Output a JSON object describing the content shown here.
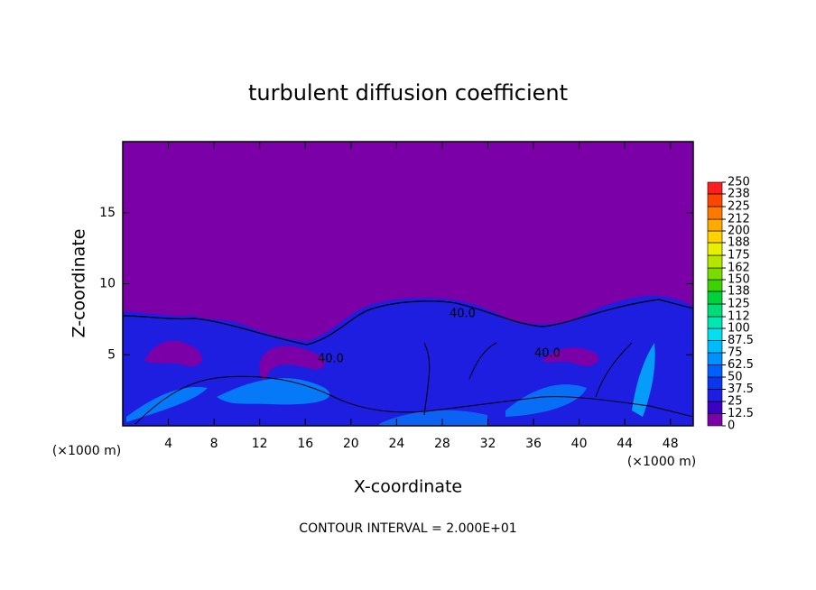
{
  "chart_data": {
    "type": "contour",
    "title": "turbulent diffusion coefficient",
    "xlabel": "X-coordinate",
    "ylabel": "Z-coordinate",
    "x_unit": "(×1000 m)",
    "y_unit": "(×1000 m)",
    "xlim": [
      0,
      50
    ],
    "xticks": [
      4,
      8,
      12,
      16,
      20,
      24,
      28,
      32,
      36,
      40,
      44,
      48
    ],
    "ylim": [
      0,
      20
    ],
    "yticks": [
      5,
      10,
      15
    ],
    "colorbar": {
      "lim": [
        0,
        250
      ],
      "ticks": [
        0,
        12.5,
        25,
        37.5,
        50,
        62.5,
        75,
        87.5,
        100,
        112,
        125,
        138,
        150,
        162,
        175,
        188,
        200,
        212,
        225,
        238,
        250
      ],
      "colors": [
        "#7b00a8",
        "#3c00c4",
        "#1e1ee0",
        "#0a36f0",
        "#0060ff",
        "#0090ff",
        "#00bcff",
        "#00e0ee",
        "#00e6b4",
        "#00dc78",
        "#00d23c",
        "#3cd200",
        "#78dc00",
        "#b4e600",
        "#e6f000",
        "#ffd200",
        "#ffaa00",
        "#ff7800",
        "#ff4600",
        "#ff1e1e"
      ]
    },
    "contour_labels": [
      "40.0",
      "40.0",
      "40.0"
    ],
    "annotation": "CONTOUR INTERVAL = 2.000E+01"
  }
}
